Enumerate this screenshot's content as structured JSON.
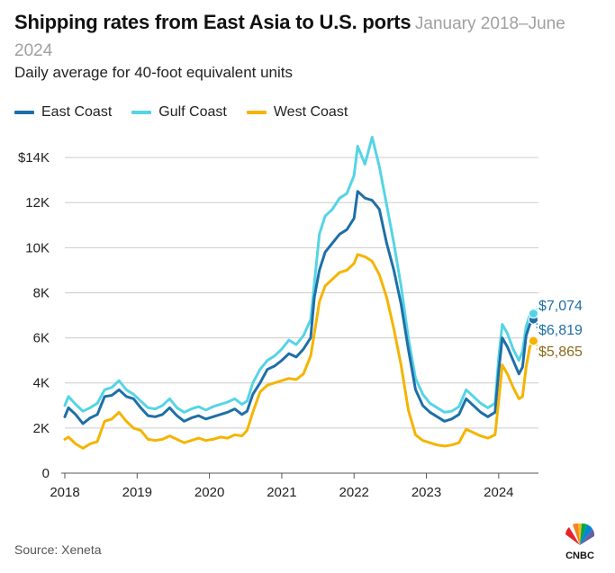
{
  "chart_data": {
    "type": "line",
    "title": "Shipping rates from East Asia to U.S. ports",
    "date_range": "January 2018–June 2024",
    "subtitle": "Daily average for 40-foot equivalent units",
    "source": "Source: Xeneta",
    "logo_text": "CNBC",
    "ylim": [
      0,
      15000
    ],
    "xlim": [
      2018,
      2024.55
    ],
    "y_ticks": [
      {
        "value": 0,
        "label": "0"
      },
      {
        "value": 2000,
        "label": "2K"
      },
      {
        "value": 4000,
        "label": "4K"
      },
      {
        "value": 6000,
        "label": "6K"
      },
      {
        "value": 8000,
        "label": "8K"
      },
      {
        "value": 10000,
        "label": "10K"
      },
      {
        "value": 12000,
        "label": "12K"
      },
      {
        "value": 14000,
        "label": "$14K"
      }
    ],
    "x_ticks": [
      {
        "value": 2018,
        "label": "2018"
      },
      {
        "value": 2019,
        "label": "2019"
      },
      {
        "value": 2020,
        "label": "2020"
      },
      {
        "value": 2021,
        "label": "2021"
      },
      {
        "value": 2022,
        "label": "2022"
      },
      {
        "value": 2023,
        "label": "2023"
      },
      {
        "value": 2024,
        "label": "2024"
      }
    ],
    "series": [
      {
        "name": "East Coast",
        "color": "#1e6fa8",
        "label_color": "#1e6fa8",
        "end_label": "$6,819",
        "end_value": 6819,
        "points": [
          [
            2018.0,
            2500
          ],
          [
            2018.05,
            2900
          ],
          [
            2018.15,
            2600
          ],
          [
            2018.25,
            2200
          ],
          [
            2018.35,
            2450
          ],
          [
            2018.45,
            2600
          ],
          [
            2018.55,
            3400
          ],
          [
            2018.65,
            3450
          ],
          [
            2018.75,
            3700
          ],
          [
            2018.85,
            3400
          ],
          [
            2018.95,
            3300
          ],
          [
            2019.05,
            2900
          ],
          [
            2019.15,
            2550
          ],
          [
            2019.25,
            2500
          ],
          [
            2019.35,
            2600
          ],
          [
            2019.45,
            2900
          ],
          [
            2019.55,
            2550
          ],
          [
            2019.65,
            2300
          ],
          [
            2019.75,
            2450
          ],
          [
            2019.85,
            2550
          ],
          [
            2019.95,
            2400
          ],
          [
            2020.05,
            2500
          ],
          [
            2020.15,
            2600
          ],
          [
            2020.25,
            2700
          ],
          [
            2020.35,
            2850
          ],
          [
            2020.45,
            2600
          ],
          [
            2020.52,
            2750
          ],
          [
            2020.6,
            3500
          ],
          [
            2020.7,
            4000
          ],
          [
            2020.8,
            4600
          ],
          [
            2020.9,
            4750
          ],
          [
            2021.0,
            5000
          ],
          [
            2021.1,
            5300
          ],
          [
            2021.2,
            5150
          ],
          [
            2021.3,
            5500
          ],
          [
            2021.4,
            6000
          ],
          [
            2021.45,
            7800
          ],
          [
            2021.52,
            9000
          ],
          [
            2021.6,
            9800
          ],
          [
            2021.7,
            10200
          ],
          [
            2021.8,
            10600
          ],
          [
            2021.9,
            10800
          ],
          [
            2022.0,
            11300
          ],
          [
            2022.05,
            12500
          ],
          [
            2022.15,
            12200
          ],
          [
            2022.25,
            12100
          ],
          [
            2022.35,
            11700
          ],
          [
            2022.45,
            10200
          ],
          [
            2022.55,
            9000
          ],
          [
            2022.65,
            7500
          ],
          [
            2022.75,
            5500
          ],
          [
            2022.85,
            3700
          ],
          [
            2022.95,
            3000
          ],
          [
            2023.05,
            2700
          ],
          [
            2023.15,
            2500
          ],
          [
            2023.25,
            2300
          ],
          [
            2023.35,
            2400
          ],
          [
            2023.45,
            2600
          ],
          [
            2023.55,
            3300
          ],
          [
            2023.65,
            3000
          ],
          [
            2023.75,
            2700
          ],
          [
            2023.85,
            2500
          ],
          [
            2023.95,
            2700
          ],
          [
            2024.0,
            4500
          ],
          [
            2024.05,
            6000
          ],
          [
            2024.12,
            5600
          ],
          [
            2024.2,
            5000
          ],
          [
            2024.28,
            4400
          ],
          [
            2024.33,
            4700
          ],
          [
            2024.38,
            6100
          ],
          [
            2024.43,
            6600
          ],
          [
            2024.48,
            6819
          ]
        ]
      },
      {
        "name": "Gulf Coast",
        "color": "#55d4e6",
        "label_color": "#1e6fa8",
        "end_label": "$7,074",
        "end_value": 7074,
        "points": [
          [
            2018.0,
            3000
          ],
          [
            2018.05,
            3400
          ],
          [
            2018.15,
            3050
          ],
          [
            2018.25,
            2750
          ],
          [
            2018.35,
            2900
          ],
          [
            2018.45,
            3100
          ],
          [
            2018.55,
            3700
          ],
          [
            2018.65,
            3800
          ],
          [
            2018.75,
            4100
          ],
          [
            2018.85,
            3700
          ],
          [
            2018.95,
            3500
          ],
          [
            2019.05,
            3200
          ],
          [
            2019.15,
            2900
          ],
          [
            2019.25,
            2850
          ],
          [
            2019.35,
            3000
          ],
          [
            2019.45,
            3300
          ],
          [
            2019.55,
            2900
          ],
          [
            2019.65,
            2700
          ],
          [
            2019.75,
            2850
          ],
          [
            2019.85,
            2950
          ],
          [
            2019.95,
            2800
          ],
          [
            2020.05,
            2950
          ],
          [
            2020.15,
            3050
          ],
          [
            2020.25,
            3150
          ],
          [
            2020.35,
            3300
          ],
          [
            2020.45,
            3050
          ],
          [
            2020.52,
            3200
          ],
          [
            2020.6,
            4000
          ],
          [
            2020.7,
            4600
          ],
          [
            2020.8,
            5000
          ],
          [
            2020.9,
            5200
          ],
          [
            2021.0,
            5500
          ],
          [
            2021.1,
            5900
          ],
          [
            2021.2,
            5700
          ],
          [
            2021.3,
            6100
          ],
          [
            2021.4,
            6800
          ],
          [
            2021.45,
            8400
          ],
          [
            2021.52,
            10600
          ],
          [
            2021.6,
            11400
          ],
          [
            2021.7,
            11700
          ],
          [
            2021.8,
            12200
          ],
          [
            2021.9,
            12400
          ],
          [
            2022.0,
            13200
          ],
          [
            2022.05,
            14500
          ],
          [
            2022.15,
            13700
          ],
          [
            2022.25,
            14900
          ],
          [
            2022.35,
            13600
          ],
          [
            2022.45,
            11900
          ],
          [
            2022.55,
            10200
          ],
          [
            2022.65,
            8300
          ],
          [
            2022.75,
            6000
          ],
          [
            2022.85,
            4200
          ],
          [
            2022.95,
            3500
          ],
          [
            2023.05,
            3100
          ],
          [
            2023.15,
            2900
          ],
          [
            2023.25,
            2700
          ],
          [
            2023.35,
            2750
          ],
          [
            2023.45,
            2950
          ],
          [
            2023.55,
            3700
          ],
          [
            2023.65,
            3400
          ],
          [
            2023.75,
            3100
          ],
          [
            2023.85,
            2900
          ],
          [
            2023.95,
            3100
          ],
          [
            2024.0,
            5100
          ],
          [
            2024.05,
            6600
          ],
          [
            2024.12,
            6200
          ],
          [
            2024.2,
            5500
          ],
          [
            2024.28,
            5000
          ],
          [
            2024.33,
            5400
          ],
          [
            2024.38,
            6500
          ],
          [
            2024.43,
            7000
          ],
          [
            2024.48,
            7074
          ]
        ]
      },
      {
        "name": "West Coast",
        "color": "#f5b400",
        "label_color": "#8a6a1a",
        "end_label": "$5,865",
        "end_value": 5865,
        "points": [
          [
            2018.0,
            1500
          ],
          [
            2018.05,
            1600
          ],
          [
            2018.15,
            1300
          ],
          [
            2018.25,
            1100
          ],
          [
            2018.35,
            1300
          ],
          [
            2018.45,
            1400
          ],
          [
            2018.55,
            2300
          ],
          [
            2018.65,
            2400
          ],
          [
            2018.75,
            2700
          ],
          [
            2018.85,
            2300
          ],
          [
            2018.95,
            2000
          ],
          [
            2019.05,
            1900
          ],
          [
            2019.15,
            1500
          ],
          [
            2019.25,
            1450
          ],
          [
            2019.35,
            1500
          ],
          [
            2019.45,
            1650
          ],
          [
            2019.55,
            1500
          ],
          [
            2019.65,
            1350
          ],
          [
            2019.75,
            1450
          ],
          [
            2019.85,
            1550
          ],
          [
            2019.95,
            1450
          ],
          [
            2020.05,
            1500
          ],
          [
            2020.15,
            1600
          ],
          [
            2020.25,
            1550
          ],
          [
            2020.35,
            1700
          ],
          [
            2020.45,
            1650
          ],
          [
            2020.52,
            1900
          ],
          [
            2020.6,
            2700
          ],
          [
            2020.7,
            3600
          ],
          [
            2020.8,
            3900
          ],
          [
            2020.9,
            4000
          ],
          [
            2021.0,
            4100
          ],
          [
            2021.1,
            4200
          ],
          [
            2021.2,
            4150
          ],
          [
            2021.3,
            4400
          ],
          [
            2021.4,
            5200
          ],
          [
            2021.45,
            6200
          ],
          [
            2021.52,
            7600
          ],
          [
            2021.6,
            8300
          ],
          [
            2021.7,
            8600
          ],
          [
            2021.8,
            8900
          ],
          [
            2021.9,
            9000
          ],
          [
            2022.0,
            9300
          ],
          [
            2022.05,
            9700
          ],
          [
            2022.15,
            9600
          ],
          [
            2022.25,
            9400
          ],
          [
            2022.35,
            8800
          ],
          [
            2022.45,
            7800
          ],
          [
            2022.55,
            6400
          ],
          [
            2022.65,
            4800
          ],
          [
            2022.75,
            2800
          ],
          [
            2022.85,
            1700
          ],
          [
            2022.95,
            1450
          ],
          [
            2023.05,
            1350
          ],
          [
            2023.15,
            1250
          ],
          [
            2023.25,
            1200
          ],
          [
            2023.35,
            1250
          ],
          [
            2023.45,
            1350
          ],
          [
            2023.55,
            1950
          ],
          [
            2023.65,
            1800
          ],
          [
            2023.75,
            1650
          ],
          [
            2023.85,
            1550
          ],
          [
            2023.95,
            1700
          ],
          [
            2024.0,
            3200
          ],
          [
            2024.05,
            4800
          ],
          [
            2024.12,
            4400
          ],
          [
            2024.2,
            3800
          ],
          [
            2024.28,
            3300
          ],
          [
            2024.33,
            3400
          ],
          [
            2024.38,
            4700
          ],
          [
            2024.43,
            5600
          ],
          [
            2024.48,
            5865
          ]
        ]
      }
    ]
  }
}
